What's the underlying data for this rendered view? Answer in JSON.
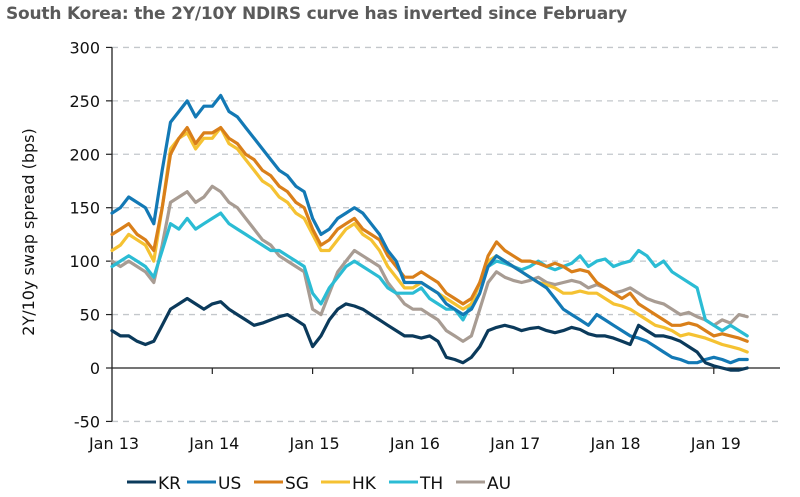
{
  "title": "South Korea: the 2Y/10Y NDIRS curve has inverted since February",
  "chart_data": {
    "type": "line",
    "title": "South Korea: the 2Y/10Y NDIRS curve has inverted since February",
    "xlabel": "",
    "ylabel": "2Y/10y swap spread (bps)",
    "ylim": [
      -50,
      300
    ],
    "yticks": [
      300,
      250,
      200,
      150,
      100,
      50,
      0,
      -50
    ],
    "xticks": [
      "Jan 13",
      "Jan 14",
      "Jan 15",
      "Jan 16",
      "Jan 17",
      "Jan 18",
      "Jan 19"
    ],
    "x_unit": "months since Jan 2013 (monthly approx.)",
    "x_range_months": [
      0,
      80
    ],
    "grid": "horizontal dashed",
    "legend_position": "bottom",
    "colors": {
      "KR": "#0b3a5b",
      "US": "#1379b5",
      "SG": "#d97f1a",
      "HK": "#f5c232",
      "TH": "#2bbcd4",
      "AU": "#a89c93"
    },
    "series": [
      {
        "name": "KR",
        "values": [
          35,
          30,
          30,
          25,
          22,
          25,
          40,
          55,
          60,
          65,
          60,
          55,
          60,
          62,
          55,
          50,
          45,
          40,
          42,
          45,
          48,
          50,
          45,
          40,
          20,
          30,
          45,
          55,
          60,
          58,
          55,
          50,
          45,
          40,
          35,
          30,
          30,
          28,
          30,
          25,
          10,
          8,
          5,
          10,
          20,
          35,
          38,
          40,
          38,
          35,
          37,
          38,
          35,
          33,
          35,
          38,
          36,
          32,
          30,
          30,
          28,
          25,
          22,
          40,
          35,
          30,
          30,
          28,
          25,
          20,
          15,
          5,
          2,
          0,
          -2,
          -2,
          0
        ]
      },
      {
        "name": "US",
        "values": [
          145,
          150,
          160,
          155,
          150,
          135,
          185,
          230,
          240,
          250,
          235,
          245,
          245,
          255,
          240,
          235,
          225,
          215,
          205,
          195,
          185,
          180,
          170,
          165,
          140,
          125,
          130,
          140,
          145,
          150,
          145,
          135,
          125,
          110,
          100,
          80,
          80,
          80,
          75,
          70,
          60,
          55,
          50,
          55,
          70,
          95,
          105,
          100,
          95,
          90,
          85,
          80,
          75,
          65,
          55,
          50,
          45,
          40,
          50,
          45,
          40,
          35,
          30,
          28,
          25,
          20,
          15,
          10,
          8,
          5,
          5,
          8,
          10,
          8,
          5,
          8,
          8
        ]
      },
      {
        "name": "SG",
        "values": [
          125,
          130,
          135,
          125,
          120,
          110,
          150,
          200,
          215,
          225,
          210,
          220,
          220,
          225,
          215,
          210,
          200,
          195,
          185,
          180,
          170,
          165,
          155,
          150,
          130,
          115,
          120,
          130,
          135,
          140,
          130,
          125,
          120,
          105,
          95,
          85,
          85,
          90,
          85,
          80,
          70,
          65,
          60,
          65,
          80,
          105,
          118,
          110,
          105,
          100,
          100,
          98,
          95,
          98,
          95,
          90,
          92,
          90,
          80,
          75,
          70,
          65,
          70,
          60,
          55,
          50,
          45,
          40,
          40,
          42,
          40,
          35,
          30,
          32,
          30,
          28,
          25
        ]
      },
      {
        "name": "HK",
        "values": [
          110,
          115,
          125,
          120,
          115,
          100,
          150,
          205,
          215,
          220,
          205,
          215,
          215,
          225,
          210,
          205,
          195,
          185,
          175,
          170,
          160,
          155,
          145,
          140,
          125,
          110,
          110,
          120,
          130,
          135,
          125,
          120,
          110,
          95,
          85,
          75,
          75,
          80,
          75,
          70,
          65,
          60,
          55,
          60,
          80,
          100,
          105,
          100,
          95,
          90,
          85,
          80,
          78,
          75,
          70,
          70,
          72,
          70,
          70,
          65,
          60,
          58,
          55,
          50,
          45,
          40,
          38,
          35,
          30,
          32,
          30,
          28,
          25,
          22,
          20,
          18,
          15
        ]
      },
      {
        "name": "TH",
        "values": [
          95,
          100,
          105,
          100,
          95,
          85,
          110,
          135,
          130,
          140,
          130,
          135,
          140,
          145,
          135,
          130,
          125,
          120,
          115,
          110,
          110,
          105,
          100,
          95,
          70,
          60,
          75,
          85,
          95,
          100,
          95,
          90,
          85,
          75,
          70,
          70,
          70,
          75,
          65,
          60,
          55,
          55,
          45,
          60,
          80,
          95,
          100,
          98,
          95,
          92,
          95,
          100,
          95,
          92,
          95,
          98,
          105,
          95,
          100,
          102,
          95,
          98,
          100,
          110,
          105,
          95,
          100,
          90,
          85,
          80,
          75,
          45,
          40,
          35,
          40,
          35,
          30
        ]
      },
      {
        "name": "AU",
        "values": [
          100,
          95,
          100,
          95,
          90,
          80,
          115,
          155,
          160,
          165,
          155,
          160,
          170,
          165,
          155,
          150,
          140,
          130,
          120,
          115,
          105,
          100,
          95,
          90,
          55,
          50,
          70,
          90,
          100,
          110,
          105,
          100,
          95,
          80,
          70,
          60,
          55,
          55,
          50,
          45,
          35,
          30,
          25,
          30,
          55,
          80,
          90,
          85,
          82,
          80,
          82,
          85,
          80,
          78,
          80,
          82,
          80,
          75,
          78,
          75,
          70,
          72,
          75,
          70,
          65,
          62,
          60,
          55,
          50,
          52,
          48,
          45,
          40,
          45,
          42,
          50,
          48
        ]
      }
    ]
  }
}
